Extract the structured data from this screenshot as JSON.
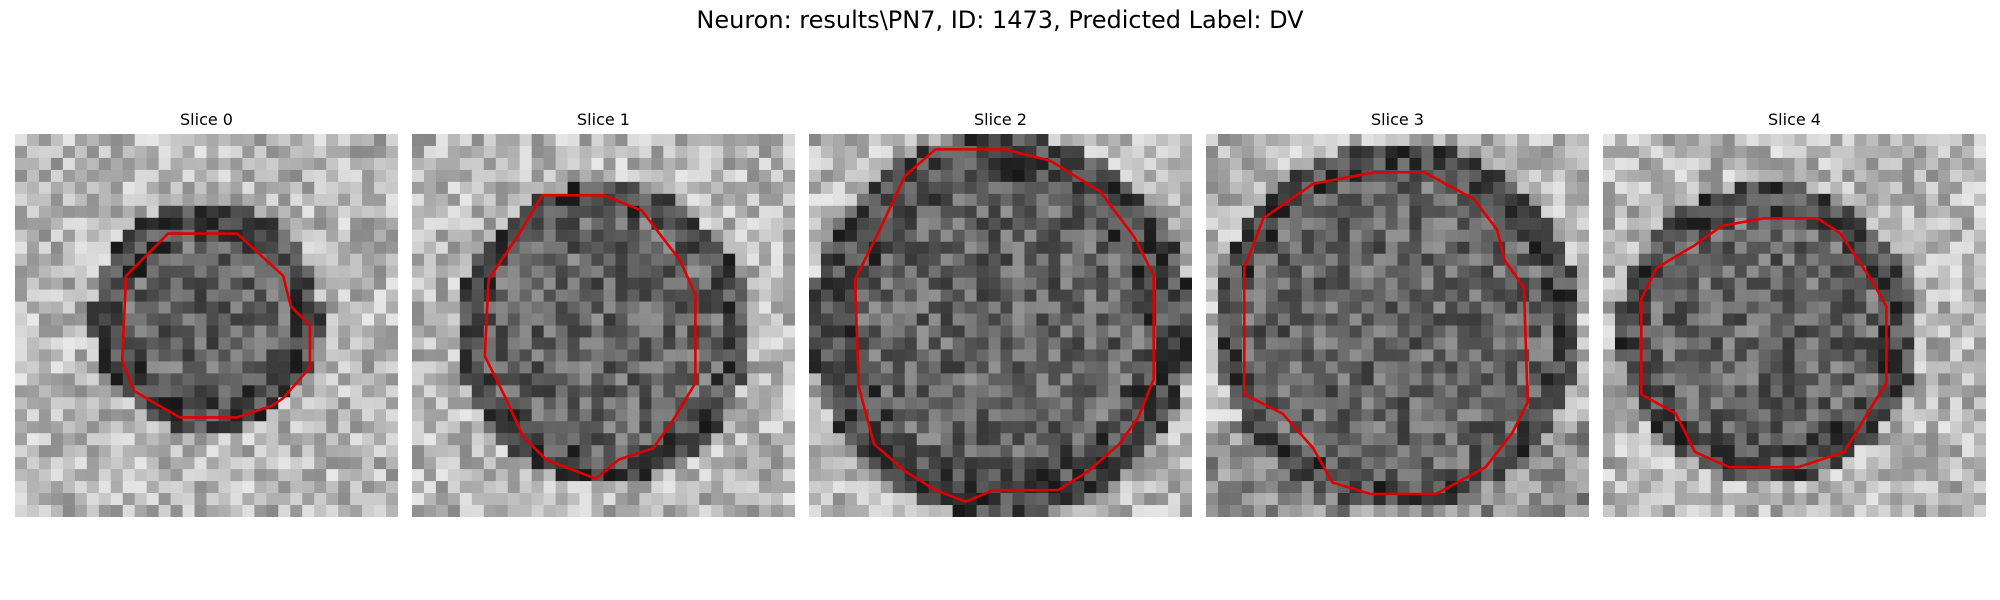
{
  "figure": {
    "title": "Neuron: results\\PN7, ID: 1473, Predicted Label: DV"
  },
  "colors": {
    "contour": "#e00000"
  },
  "panels": [
    {
      "title": "Slice 0"
    },
    {
      "title": "Slice 1"
    },
    {
      "title": "Slice 2"
    },
    {
      "title": "Slice 3"
    },
    {
      "title": "Slice 4"
    }
  ]
}
